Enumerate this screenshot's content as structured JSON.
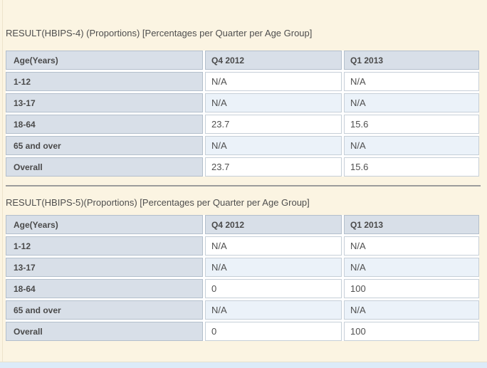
{
  "colors": {
    "page_background": "#FBF4E2",
    "header_cell_background": "#D8DFE8",
    "alt_row_background": "#EBF2F9",
    "label_cell_border": "#B3BFCC",
    "value_cell_border": "#C6CFD8",
    "text": "#4F4F4F",
    "divider": "#9C9C9C",
    "footer_bar_background": "#DCEBF8"
  },
  "sections": [
    {
      "heading": "RESULT(HBIPS-4) (Proportions) [Percentages per Quarter per Age Group]",
      "table": {
        "columns": [
          "Age(Years)",
          "Q4 2012",
          "Q1 2013"
        ],
        "rows": [
          {
            "label": "1-12",
            "values": [
              "N/A",
              "N/A"
            ]
          },
          {
            "label": "13-17",
            "values": [
              "N/A",
              "N/A"
            ]
          },
          {
            "label": "18-64",
            "values": [
              "23.7",
              "15.6"
            ]
          },
          {
            "label": "65 and over",
            "values": [
              "N/A",
              "N/A"
            ]
          },
          {
            "label": "Overall",
            "values": [
              "23.7",
              "15.6"
            ]
          }
        ]
      }
    },
    {
      "heading": "RESULT(HBIPS-5)(Proportions) [Percentages per Quarter per Age Group]",
      "table": {
        "columns": [
          "Age(Years)",
          "Q4 2012",
          "Q1 2013"
        ],
        "rows": [
          {
            "label": "1-12",
            "values": [
              "N/A",
              "N/A"
            ]
          },
          {
            "label": "13-17",
            "values": [
              "N/A",
              "N/A"
            ]
          },
          {
            "label": "18-64",
            "values": [
              "0",
              "100"
            ]
          },
          {
            "label": "65 and over",
            "values": [
              "N/A",
              "N/A"
            ]
          },
          {
            "label": "Overall",
            "values": [
              "0",
              "100"
            ]
          }
        ]
      }
    }
  ]
}
